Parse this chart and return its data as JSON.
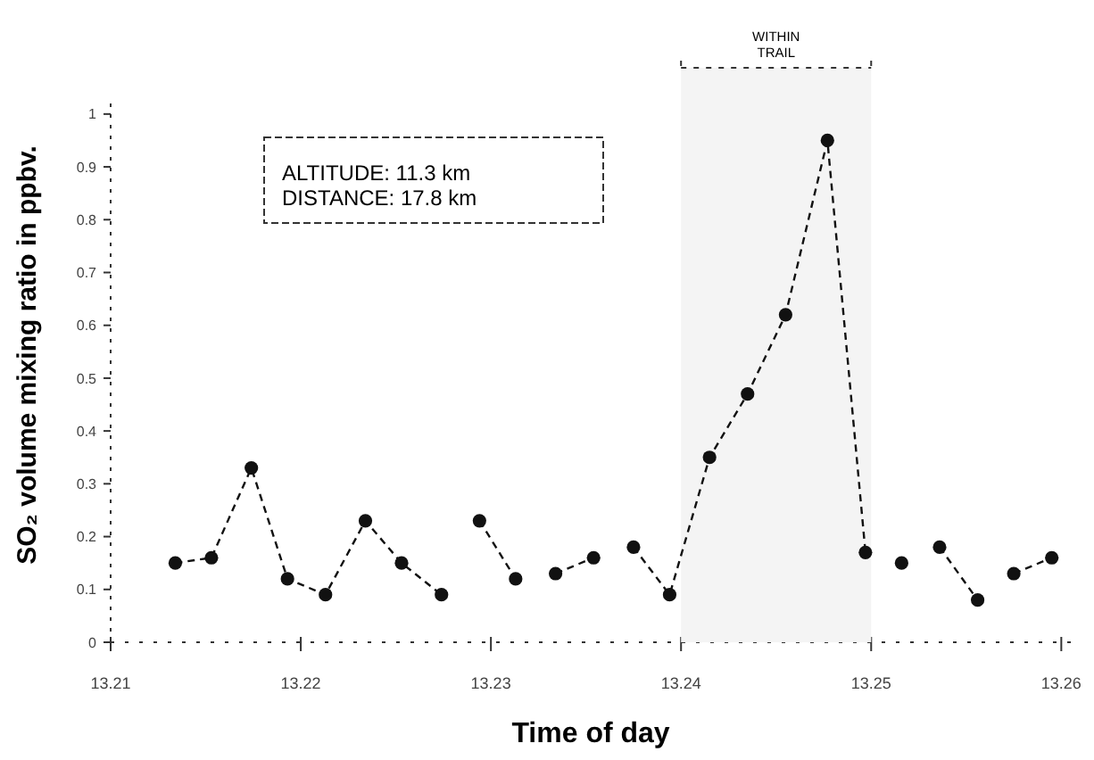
{
  "chart_data": {
    "type": "line",
    "xlabel": "Time of day",
    "ylabel": "SO₂ volume mixing ratio in ppbv.",
    "x": [
      13.2134,
      13.2153,
      13.2174,
      13.2193,
      13.2213,
      13.2234,
      13.2253,
      13.2274,
      13.2284,
      13.2294,
      13.2313,
      13.2323,
      13.2334,
      13.2354,
      13.2365,
      13.2375,
      13.2394,
      13.2415,
      13.2435,
      13.2455,
      13.2477,
      13.2497,
      13.2506,
      13.2516,
      13.2526,
      13.2536,
      13.2556,
      13.2565,
      13.2575,
      13.2595
    ],
    "series": [
      {
        "color": "#111111",
        "values": [
          0.15,
          0.16,
          0.33,
          0.12,
          0.09,
          0.23,
          0.15,
          0.09,
          null,
          0.23,
          0.12,
          null,
          0.13,
          0.16,
          null,
          0.18,
          0.09,
          0.35,
          0.47,
          0.62,
          0.95,
          0.17,
          null,
          0.15,
          null,
          0.18,
          0.08,
          null,
          0.13,
          0.16
        ]
      }
    ],
    "xlim": [
      13.21,
      13.2605
    ],
    "xticks": [
      13.21,
      13.22,
      13.23,
      13.24,
      13.25,
      13.26
    ],
    "ylim": [
      0,
      1.02
    ],
    "yticks": [
      0,
      0.1,
      0.2,
      0.3,
      0.4,
      0.5,
      0.6,
      0.7,
      0.8,
      0.9,
      1
    ],
    "bands": [
      {
        "axis": "x",
        "from": 13.24,
        "to": 13.25,
        "label": "WITHIN TRAIL",
        "color": "#f4f4f4"
      }
    ],
    "annotations": [
      "ALTITUDE: 11.3 km",
      "DISTANCE: 17.8 km"
    ],
    "grid": false,
    "marker": "circle",
    "line_style": "dashed"
  }
}
